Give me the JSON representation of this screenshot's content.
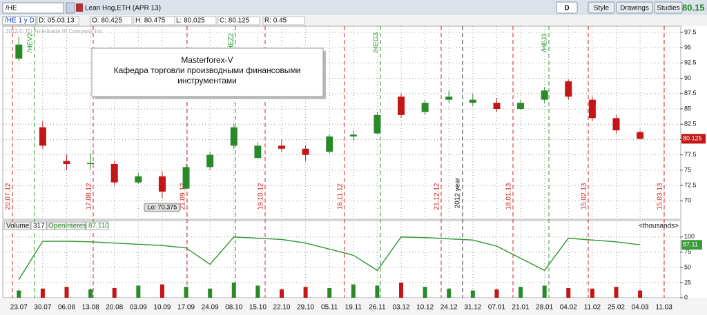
{
  "toolbar": {
    "symbol": "/HE",
    "description": "Lean Hog,ETH (APR 13)",
    "buttons": [
      "D",
      "Style",
      "Drawings",
      "Studies"
    ],
    "last": "80.15"
  },
  "info": {
    "series": "/HE 1 y D",
    "fields": [
      "D: 05.03.13",
      "O: 80.425",
      "H: 80.475",
      "L: 80.025",
      "C: 80.125",
      "R: 0.45"
    ]
  },
  "chart_data": [
    {
      "type": "candlestick",
      "copyright": "2012 © TD Ameritrade IP Company, Inc.",
      "annotation": [
        "Masterforex-V",
        "Кафедра торговли производными финансовыми",
        "инструментами"
      ],
      "categories": [
        "23.07",
        "30.07",
        "06.08",
        "13.08",
        "20.08",
        "03.09",
        "10.09",
        "17.09",
        "24.09",
        "08.10",
        "15.10",
        "22.10",
        "29.10",
        "05.11",
        "19.11",
        "26.11",
        "03.12",
        "10.12",
        "24.12",
        "31.12",
        "07.01",
        "21.01",
        "28.01",
        "04.02",
        "11.02",
        "25.02",
        "04.03",
        "11.03"
      ],
      "open": [
        93.2,
        82.0,
        76.5,
        76.0,
        76.0,
        73.0,
        74.0,
        72.0,
        75.5,
        79.0,
        77.0,
        79.0,
        78.5,
        78.0,
        80.5,
        81.0,
        87.0,
        84.5,
        86.5,
        86.0,
        86.0,
        85.0,
        86.5,
        89.5,
        86.5,
        83.5,
        81.2,
        null
      ],
      "high": [
        96.8,
        83.0,
        77.5,
        77.8,
        76.5,
        74.5,
        74.8,
        76.0,
        78.0,
        82.5,
        79.5,
        80.0,
        79.0,
        80.8,
        81.5,
        84.5,
        87.5,
        86.5,
        88.0,
        87.5,
        86.8,
        86.5,
        88.5,
        89.8,
        87.0,
        84.0,
        81.5,
        null
      ],
      "low": [
        92.8,
        78.5,
        75.0,
        75.2,
        72.5,
        72.8,
        70.375,
        71.8,
        75.0,
        78.5,
        76.8,
        78.0,
        76.5,
        77.8,
        79.8,
        80.8,
        83.5,
        84.0,
        86.0,
        85.5,
        84.5,
        84.8,
        86.0,
        86.5,
        83.0,
        81.0,
        80.025,
        null
      ],
      "close": [
        95.5,
        79.0,
        76.0,
        76.2,
        73.0,
        74.0,
        71.5,
        75.5,
        77.5,
        82.0,
        79.0,
        78.5,
        77.5,
        80.5,
        80.8,
        84.0,
        84.0,
        86.0,
        87.0,
        86.5,
        85.0,
        86.0,
        88.0,
        87.0,
        83.5,
        81.5,
        80.125,
        null
      ],
      "up_color": "#2a8a2a",
      "down_color": "#c41616",
      "ylim": [
        67,
        98.5
      ],
      "yticks": [
        70,
        72.5,
        75,
        77.5,
        80,
        82.5,
        85,
        87.5,
        90,
        92.5,
        95,
        97.5
      ],
      "grid": true,
      "last_price": 80.125,
      "low_label": "Lo: 70.375",
      "year_marker": "2012 year",
      "events": [
        {
          "label": "20.07.12",
          "color": "#d42020"
        },
        {
          "label": "/HEV2",
          "color": "#2a9a2a"
        },
        {
          "label": "17.08.12",
          "color": "#d42020"
        },
        {
          "label": "21.09.12",
          "color": "#d42020"
        },
        {
          "label": "/HEZ2",
          "color": "#2a9a2a"
        },
        {
          "label": "19.10.12",
          "color": "#d42020"
        },
        {
          "label": "16.11.12",
          "color": "#d42020"
        },
        {
          "label": "/HEG3",
          "color": "#2a9a2a"
        },
        {
          "label": "21.12.12",
          "color": "#d42020"
        },
        {
          "label": "18.01.13",
          "color": "#d42020"
        },
        {
          "label": "/HEJ3",
          "color": "#2a9a2a"
        },
        {
          "label": "15.02.13",
          "color": "#d42020"
        },
        {
          "label": "15.03.13",
          "color": "#d42020"
        }
      ]
    },
    {
      "type": "bar-line",
      "volume_total": 317,
      "oi_text": "87,110",
      "units": "<thousands>",
      "series": [
        {
          "name": "Volume",
          "values": [
            12,
            15,
            18,
            14,
            16,
            20,
            22,
            18,
            15,
            25,
            20,
            14,
            18,
            16,
            22,
            20,
            25,
            18,
            15,
            12,
            14,
            18,
            20,
            16,
            15,
            18,
            12,
            null
          ]
        },
        {
          "name": "OpenInterest",
          "color": "#3a9a3a",
          "values": [
            30,
            93,
            93,
            92,
            90,
            88,
            86,
            82,
            55,
            100,
            98,
            96,
            90,
            80,
            70,
            45,
            100,
            99,
            97,
            95,
            85,
            65,
            45,
            98,
            95,
            92,
            87.11,
            null
          ]
        }
      ],
      "last_oi": 87.11,
      "ylim": [
        0,
        110
      ],
      "yticks": [
        0,
        25,
        50,
        75,
        100
      ],
      "grid": true
    }
  ]
}
